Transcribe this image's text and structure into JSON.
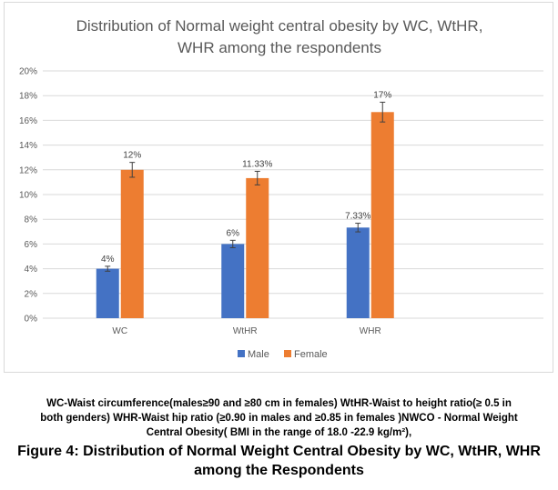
{
  "chart_data": {
    "type": "bar",
    "title_lines": [
      "Distribution of Normal weight central obesity by WC, WtHR,",
      "WHR among the respondents"
    ],
    "categories": [
      "WC",
      "WtHR",
      "WHR"
    ],
    "series": [
      {
        "name": "Male",
        "color": "#4472C4",
        "values": [
          4,
          6,
          7.33
        ],
        "labels": [
          "4%",
          "6%",
          "7.33%"
        ],
        "errors": [
          0.2,
          0.3,
          0.35
        ]
      },
      {
        "name": "Female",
        "color": "#ED7D31",
        "values": [
          12,
          11.33,
          16.67
        ],
        "labels": [
          "12%",
          "11.33%",
          "17%"
        ],
        "errors": [
          0.6,
          0.55,
          0.8
        ]
      }
    ],
    "ylim": [
      0,
      20
    ],
    "yticks": [
      "0%",
      "2%",
      "4%",
      "6%",
      "8%",
      "10%",
      "12%",
      "14%",
      "16%",
      "18%",
      "20%"
    ],
    "grid": true,
    "legend_position": "bottom"
  },
  "caption": {
    "note_line1": "WC-Waist circumference(males≥90 and  ≥80  cm in females)  WtHR-Waist to height ratio(≥ 0.5 in",
    "note_line2": "both genders) WHR-Waist hip ratio  (≥0.90 in males and ≥0.85 in females )NWCO - Normal Weight",
    "note_line3": "Central Obesity( BMI in the range of 18.0 -22.9 kg/m²),",
    "figure_line1": "Figure 4: Distribution of Normal Weight Central Obesity by WC, WtHR, WHR",
    "figure_line2": "among the Respondents"
  }
}
